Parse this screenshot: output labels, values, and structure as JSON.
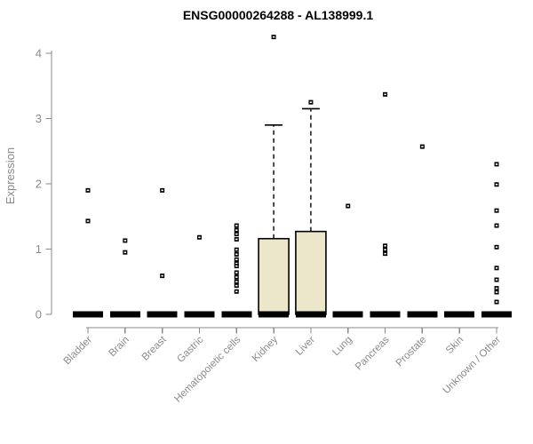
{
  "title": "ENSG00000264288 - AL138999.1",
  "chart_data": {
    "type": "boxplot",
    "title": "ENSG00000264288 - AL138999.1",
    "ylabel": "Expression",
    "xlabel": "",
    "ylim": [
      0,
      4.4
    ],
    "yticks": [
      0,
      1,
      2,
      3,
      4
    ],
    "grid": false,
    "legend": null,
    "categories": [
      "Bladder",
      "Brain",
      "Breast",
      "Gastric",
      "Hematopoietic cells",
      "Kidney",
      "Liver",
      "Lung",
      "Pancreas",
      "Prostate",
      "Skin",
      "Unknown / Other"
    ],
    "series": [
      {
        "category": "Bladder",
        "q1": 0,
        "median": 0,
        "q3": 0,
        "whisker_low": 0,
        "whisker_high": 0,
        "outliers": [
          1.9,
          1.43
        ]
      },
      {
        "category": "Brain",
        "q1": 0,
        "median": 0,
        "q3": 0,
        "whisker_low": 0,
        "whisker_high": 0,
        "outliers": [
          1.13,
          0.95
        ]
      },
      {
        "category": "Breast",
        "q1": 0,
        "median": 0,
        "q3": 0,
        "whisker_low": 0,
        "whisker_high": 0,
        "outliers": [
          1.9,
          0.59
        ]
      },
      {
        "category": "Gastric",
        "q1": 0,
        "median": 0,
        "q3": 0,
        "whisker_low": 0,
        "whisker_high": 0,
        "outliers": [
          1.18
        ]
      },
      {
        "category": "Hematopoietic cells",
        "q1": 0,
        "median": 0,
        "q3": 0,
        "whisker_low": 0,
        "whisker_high": 0,
        "outliers": [
          1.36,
          1.29,
          1.23,
          1.15,
          0.99,
          0.92,
          0.84,
          0.78,
          0.74,
          0.64,
          0.57,
          0.5,
          0.44,
          0.35
        ]
      },
      {
        "category": "Kidney",
        "q1": 0,
        "median": 0,
        "q3": 1.16,
        "whisker_low": 0,
        "whisker_high": 2.9,
        "outliers": [
          4.25
        ]
      },
      {
        "category": "Liver",
        "q1": 0,
        "median": 0,
        "q3": 1.27,
        "whisker_low": 0,
        "whisker_high": 3.15,
        "outliers": [
          3.25
        ]
      },
      {
        "category": "Lung",
        "q1": 0,
        "median": 0,
        "q3": 0,
        "whisker_low": 0,
        "whisker_high": 0,
        "outliers": [
          1.66
        ]
      },
      {
        "category": "Pancreas",
        "q1": 0,
        "median": 0,
        "q3": 0,
        "whisker_low": 0,
        "whisker_high": 0,
        "outliers": [
          3.37,
          1.05,
          0.99,
          0.93
        ]
      },
      {
        "category": "Prostate",
        "q1": 0,
        "median": 0,
        "q3": 0,
        "whisker_low": 0,
        "whisker_high": 0,
        "outliers": [
          2.57
        ]
      },
      {
        "category": "Skin",
        "q1": 0,
        "median": 0,
        "q3": 0,
        "whisker_low": 0,
        "whisker_high": 0,
        "outliers": []
      },
      {
        "category": "Unknown / Other",
        "q1": 0,
        "median": 0,
        "q3": 0,
        "whisker_low": 0,
        "whisker_high": 0,
        "outliers": [
          2.3,
          1.99,
          1.59,
          1.36,
          1.03,
          0.71,
          0.53,
          0.4,
          0.34,
          0.19
        ]
      }
    ],
    "colors": {
      "background": "#FFFFFF",
      "box_fill": "#ECE7CB",
      "box_border": "#000000",
      "median": "#000000",
      "whisker": "#000000",
      "outlier": "#000000",
      "axis": "#8A8A8A",
      "tick_label": "#8A8A8A",
      "title": "#000000"
    }
  }
}
